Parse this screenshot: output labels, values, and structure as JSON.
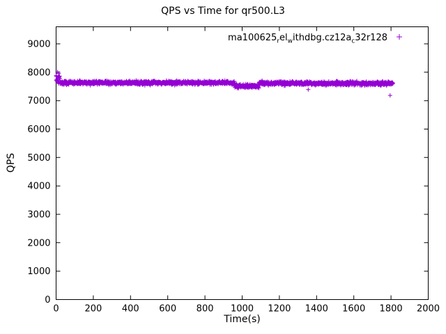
{
  "title": "QPS vs Time for qr500.L3",
  "chart_data": {
    "type": "scatter",
    "title": "QPS vs Time for qr500.L3",
    "xlabel": "Time(s)",
    "ylabel": "QPS",
    "xlim": [
      0,
      2000
    ],
    "ylim": [
      0,
      9600
    ],
    "xticks": [
      0,
      200,
      400,
      600,
      800,
      1000,
      1200,
      1400,
      1600,
      1800,
      2000
    ],
    "yticks": [
      0,
      1000,
      2000,
      3000,
      4000,
      5000,
      6000,
      7000,
      8000,
      9000
    ],
    "grid": false,
    "legend_position": "top-right-inside",
    "series": [
      {
        "name": "ma100625_rel_withdbg.cz12a_c32r128",
        "label_parts": [
          {
            "type": "text",
            "value": "ma100625"
          },
          {
            "type": "sub",
            "value": "r"
          },
          {
            "type": "text",
            "value": "el"
          },
          {
            "type": "sub",
            "value": "w"
          },
          {
            "type": "text",
            "value": "ithdbg.cz12a"
          },
          {
            "type": "sub",
            "value": "c"
          },
          {
            "type": "text",
            "value": "32r128"
          }
        ],
        "color": "#9400D3",
        "marker": "plus",
        "sample_interval_s": 1,
        "segments": [
          {
            "x_start": 0,
            "x_end": 20,
            "mean_qps": 7780,
            "spread_qps": 170
          },
          {
            "x_start": 21,
            "x_end": 960,
            "mean_qps": 7630,
            "spread_qps": 55
          },
          {
            "x_start": 961,
            "x_end": 1090,
            "mean_qps": 7510,
            "spread_qps": 60
          },
          {
            "x_start": 1091,
            "x_end": 1810,
            "mean_qps": 7610,
            "spread_qps": 55
          }
        ],
        "outliers": [
          [
            8,
            8010
          ],
          [
            13,
            7960
          ],
          [
            1355,
            7390
          ],
          [
            1795,
            7185
          ]
        ]
      }
    ]
  }
}
